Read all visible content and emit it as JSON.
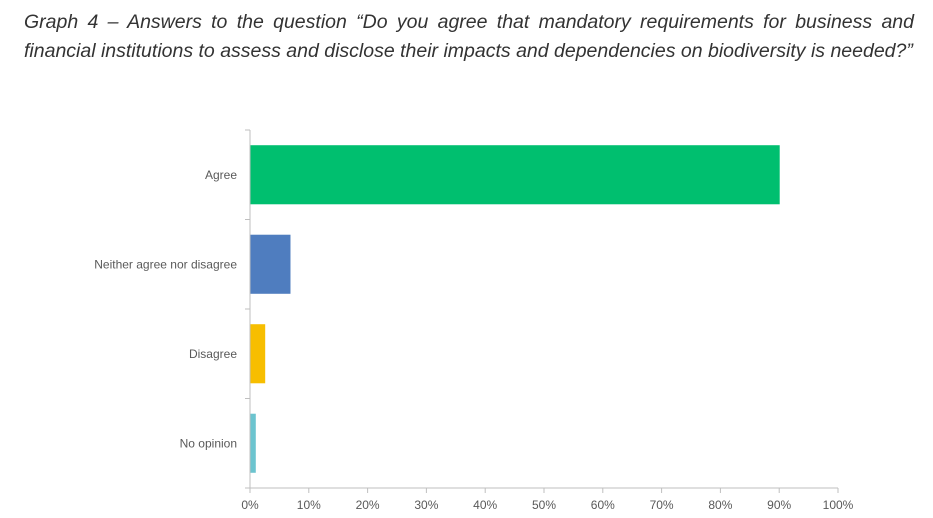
{
  "chart_data": {
    "type": "bar",
    "orientation": "horizontal",
    "title": "Graph 4 – Answers to the question “Do you agree that mandatory requirements for business and financial institutions to assess and disclose their impacts and dependencies on biodiversity is needed?”",
    "categories": [
      "Agree",
      "Neither agree nor disagree",
      "Disagree",
      "No opinion"
    ],
    "values": [
      90,
      6.8,
      2.5,
      0.9
    ],
    "colors": [
      "#00BF6F",
      "#4F7DBF",
      "#F7BE00",
      "#6CC4CF"
    ],
    "xlim": [
      0,
      100
    ],
    "xticks": [
      "0%",
      "10%",
      "20%",
      "30%",
      "40%",
      "50%",
      "60%",
      "70%",
      "80%",
      "90%",
      "100%"
    ],
    "grid": false,
    "legend": "none"
  }
}
